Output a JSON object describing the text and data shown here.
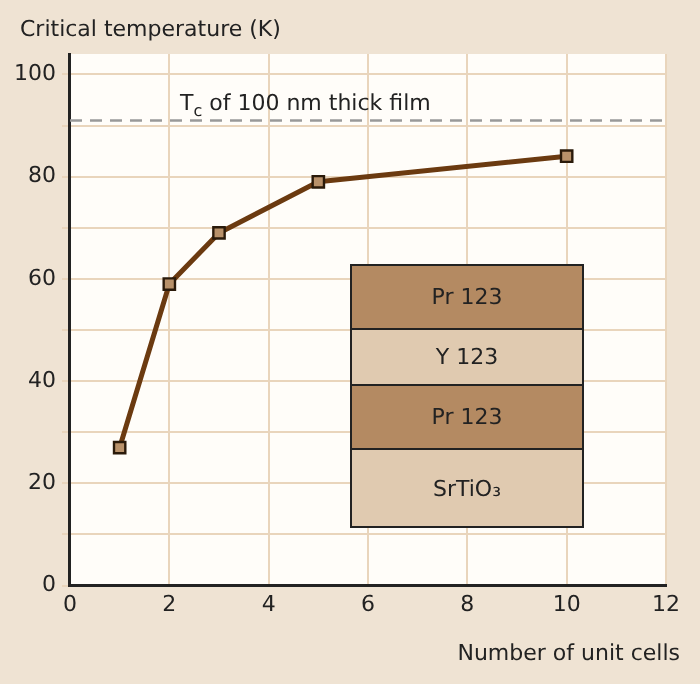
{
  "chart_data": {
    "type": "line",
    "ylabel": "Critical temperature (K)",
    "xlabel": "Number of unit cells",
    "x": [
      1,
      2,
      3,
      5,
      10
    ],
    "series": [
      {
        "color": "#6b3a10",
        "values": [
          27,
          59,
          69,
          79,
          84
        ]
      }
    ],
    "xlim": [
      0,
      12
    ],
    "xticks": [
      0,
      2,
      4,
      6,
      8,
      10,
      12
    ],
    "ylim": [
      0,
      104
    ],
    "yticks": [
      0,
      {
        "value": 10,
        "label": null
      },
      20,
      {
        "value": 30,
        "label": null
      },
      40,
      {
        "value": 50,
        "label": null
      },
      60,
      {
        "value": 70,
        "label": null
      },
      80,
      {
        "value": 90,
        "label": null
      },
      100
    ],
    "ref_lines": [
      {
        "axis": "y",
        "value": 91,
        "label": "T$_{c}$ of 100 nm thick film",
        "color": "#999999",
        "line_style": "dashed"
      }
    ],
    "annotations": [
      "Pr 123",
      "Y 123",
      "Pr 123",
      "SrTiO₃"
    ],
    "grid": true,
    "legend": false,
    "marker": "square",
    "line_style": "solid"
  }
}
